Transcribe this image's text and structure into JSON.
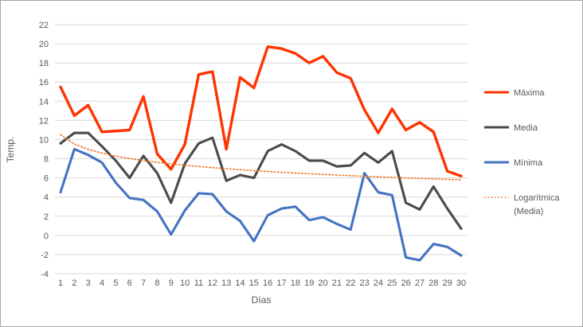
{
  "chart_data": {
    "type": "line",
    "title": "",
    "xlabel": "Días",
    "ylabel": "Temp.",
    "grid": true,
    "legend_position": "right",
    "x": [
      1,
      2,
      3,
      4,
      5,
      6,
      7,
      8,
      9,
      10,
      11,
      12,
      13,
      14,
      15,
      16,
      17,
      18,
      19,
      20,
      21,
      22,
      23,
      24,
      25,
      26,
      27,
      28,
      29,
      30
    ],
    "ylim": [
      -4,
      22
    ],
    "yticks": [
      22,
      20,
      18,
      16,
      14,
      12,
      10,
      8,
      6,
      4,
      2,
      0,
      -2,
      -4
    ],
    "series": [
      {
        "id": "maxima",
        "name": "Máxima",
        "color": "#ff3300",
        "style": "solid",
        "width": 3.4,
        "legend_lines": [
          "Máxima"
        ],
        "values": [
          15.5,
          12.5,
          13.6,
          10.8,
          10.9,
          11.0,
          14.5,
          8.5,
          6.9,
          9.5,
          16.8,
          17.1,
          9.0,
          16.5,
          15.4,
          19.7,
          19.5,
          19.0,
          18.0,
          18.7,
          17.0,
          16.4,
          13.1,
          10.7,
          13.2,
          11.0,
          11.8,
          10.8,
          6.7,
          6.2
        ]
      },
      {
        "id": "media",
        "name": "Media",
        "color": "#4a4a4a",
        "style": "solid",
        "width": 3.1,
        "legend_lines": [
          "Media"
        ],
        "values": [
          9.6,
          10.7,
          10.7,
          9.3,
          7.8,
          6.0,
          8.3,
          6.5,
          3.4,
          7.5,
          9.6,
          10.2,
          5.7,
          6.3,
          6.0,
          8.8,
          9.5,
          8.8,
          7.8,
          7.8,
          7.2,
          7.3,
          8.6,
          7.6,
          8.8,
          3.4,
          2.7,
          5.1,
          2.8,
          0.7
        ]
      },
      {
        "id": "minima",
        "name": "Mínima",
        "color": "#4472c4",
        "style": "solid",
        "width": 3.1,
        "legend_lines": [
          "Mínima"
        ],
        "values": [
          4.5,
          9.0,
          8.4,
          7.6,
          5.5,
          3.9,
          3.7,
          2.5,
          0.1,
          2.6,
          4.4,
          4.3,
          2.5,
          1.5,
          -0.6,
          2.1,
          2.8,
          3.0,
          1.6,
          1.9,
          1.2,
          0.6,
          6.5,
          4.5,
          4.2,
          -2.3,
          -2.6,
          -0.9,
          -1.2,
          -2.1
        ]
      },
      {
        "id": "logaritmica-media",
        "name": "Logarítmica (Media)",
        "color": "#ed7d31",
        "style": "dotted",
        "width": 1.7,
        "legend_lines": [
          "Logarítmica",
          "(Media)"
        ],
        "values": [
          10.5,
          9.54,
          8.98,
          8.59,
          8.28,
          8.03,
          7.81,
          7.63,
          7.47,
          7.32,
          7.19,
          7.07,
          6.96,
          6.86,
          6.76,
          6.67,
          6.59,
          6.51,
          6.44,
          6.37,
          6.3,
          6.23,
          6.17,
          6.11,
          6.06,
          6.0,
          5.95,
          5.9,
          5.85,
          5.81
        ]
      }
    ]
  },
  "colors": {
    "gridline": "#d9d9d9",
    "tick_text": "#595959",
    "frame_border": "#a6a6a6",
    "background": "#ffffff"
  }
}
